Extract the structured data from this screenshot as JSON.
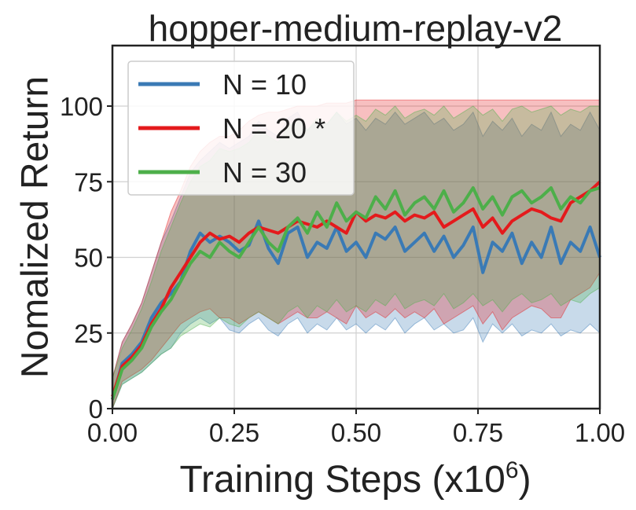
{
  "chart_data": {
    "type": "line",
    "title": "hopper-medium-replay-v2",
    "xlabel": "Training Steps (x10",
    "xlabel_exponent": "6",
    "xlabel_close": ")",
    "ylabel": "Nomalized Return",
    "xlim": [
      0,
      1
    ],
    "ylim": [
      0,
      120
    ],
    "xticks": [
      0,
      0.25,
      0.5,
      0.75,
      1
    ],
    "xtick_labels": [
      "0.00",
      "0.25",
      "0.50",
      "0.75",
      "1.00"
    ],
    "yticks": [
      0,
      25,
      50,
      75,
      100
    ],
    "ytick_labels": [
      "0",
      "25",
      "50",
      "75",
      "100"
    ],
    "grid": true,
    "legend_position": "top-left",
    "x": [
      0,
      0.02,
      0.04,
      0.06,
      0.08,
      0.1,
      0.12,
      0.14,
      0.16,
      0.18,
      0.2,
      0.22,
      0.24,
      0.26,
      0.28,
      0.3,
      0.32,
      0.34,
      0.36,
      0.38,
      0.4,
      0.42,
      0.44,
      0.46,
      0.48,
      0.5,
      0.52,
      0.54,
      0.56,
      0.58,
      0.6,
      0.62,
      0.64,
      0.66,
      0.68,
      0.7,
      0.72,
      0.74,
      0.76,
      0.78,
      0.8,
      0.82,
      0.84,
      0.86,
      0.88,
      0.9,
      0.92,
      0.94,
      0.96,
      0.98,
      1.0
    ],
    "series": [
      {
        "name": "N = 10",
        "color": "#3a7ab5",
        "values": [
          3,
          15,
          18,
          22,
          30,
          35,
          38,
          42,
          52,
          58,
          55,
          57,
          55,
          52,
          54,
          62,
          53,
          48,
          58,
          60,
          50,
          55,
          53,
          60,
          52,
          55,
          50,
          58,
          56,
          60,
          52,
          55,
          58,
          52,
          57,
          50,
          54,
          60,
          45,
          55,
          52,
          58,
          48,
          55,
          50,
          60,
          48,
          55,
          52,
          60,
          50
        ],
        "lower": [
          0,
          8,
          10,
          12,
          15,
          18,
          20,
          25,
          28,
          30,
          28,
          30,
          26,
          25,
          28,
          30,
          26,
          24,
          28,
          30,
          25,
          28,
          26,
          30,
          26,
          28,
          25,
          28,
          26,
          30,
          25,
          28,
          30,
          26,
          28,
          25,
          26,
          30,
          22,
          28,
          25,
          28,
          24,
          26,
          25,
          28,
          24,
          26,
          25,
          28,
          25
        ],
        "upper": [
          10,
          22,
          28,
          35,
          45,
          55,
          62,
          70,
          78,
          82,
          85,
          88,
          86,
          88,
          90,
          95,
          92,
          90,
          96,
          98,
          92,
          95,
          94,
          98,
          94,
          96,
          92,
          96,
          94,
          98,
          94,
          96,
          98,
          94,
          96,
          92,
          94,
          98,
          90,
          95,
          92,
          96,
          90,
          94,
          92,
          98,
          90,
          94,
          92,
          98,
          92
        ]
      },
      {
        "name": "N = 20 *",
        "color": "#e41a1c",
        "values": [
          4,
          14,
          17,
          21,
          28,
          33,
          40,
          45,
          50,
          55,
          58,
          56,
          57,
          55,
          58,
          60,
          59,
          58,
          60,
          62,
          61,
          60,
          62,
          60,
          58,
          65,
          62,
          64,
          63,
          65,
          62,
          64,
          63,
          65,
          60,
          62,
          64,
          66,
          60,
          63,
          58,
          62,
          64,
          66,
          65,
          63,
          62,
          68,
          70,
          72,
          75
        ],
        "lower": [
          0,
          9,
          11,
          13,
          16,
          20,
          24,
          28,
          30,
          32,
          33,
          30,
          30,
          28,
          30,
          32,
          30,
          28,
          30,
          32,
          30,
          30,
          32,
          30,
          28,
          34,
          30,
          32,
          30,
          33,
          30,
          32,
          30,
          33,
          28,
          30,
          32,
          34,
          28,
          32,
          26,
          30,
          32,
          34,
          33,
          30,
          30,
          36,
          38,
          40,
          45
        ],
        "upper": [
          10,
          22,
          28,
          35,
          45,
          55,
          65,
          72,
          80,
          85,
          88,
          90,
          90,
          92,
          95,
          97,
          98,
          98,
          99,
          100,
          100,
          100,
          101,
          101,
          101,
          102,
          102,
          102,
          102,
          102,
          102,
          102,
          102,
          102,
          102,
          102,
          102,
          102,
          102,
          102,
          102,
          102,
          102,
          102,
          102,
          102,
          102,
          102,
          102,
          102,
          102
        ]
      },
      {
        "name": "N = 30",
        "color": "#4daf4a",
        "values": [
          3,
          13,
          16,
          20,
          27,
          32,
          36,
          42,
          48,
          52,
          50,
          55,
          52,
          50,
          55,
          60,
          55,
          52,
          60,
          63,
          58,
          65,
          60,
          68,
          62,
          65,
          63,
          70,
          66,
          72,
          64,
          68,
          70,
          66,
          72,
          65,
          68,
          73,
          66,
          70,
          64,
          70,
          72,
          68,
          70,
          73,
          66,
          70,
          68,
          72,
          73
        ],
        "lower": [
          0,
          8,
          10,
          12,
          15,
          18,
          20,
          24,
          26,
          28,
          27,
          30,
          28,
          27,
          30,
          32,
          30,
          28,
          32,
          34,
          30,
          34,
          32,
          36,
          32,
          34,
          32,
          36,
          34,
          38,
          33,
          35,
          36,
          34,
          38,
          33,
          35,
          38,
          34,
          36,
          32,
          36,
          38,
          35,
          36,
          38,
          34,
          36,
          35,
          38,
          40
        ],
        "upper": [
          10,
          20,
          26,
          33,
          42,
          52,
          60,
          68,
          75,
          80,
          82,
          86,
          85,
          86,
          88,
          92,
          90,
          88,
          93,
          96,
          92,
          96,
          94,
          98,
          95,
          97,
          95,
          99,
          97,
          100,
          96,
          98,
          99,
          97,
          100,
          96,
          98,
          100,
          97,
          99,
          95,
          99,
          100,
          98,
          99,
          100,
          97,
          99,
          98,
          100,
          100
        ]
      }
    ]
  }
}
